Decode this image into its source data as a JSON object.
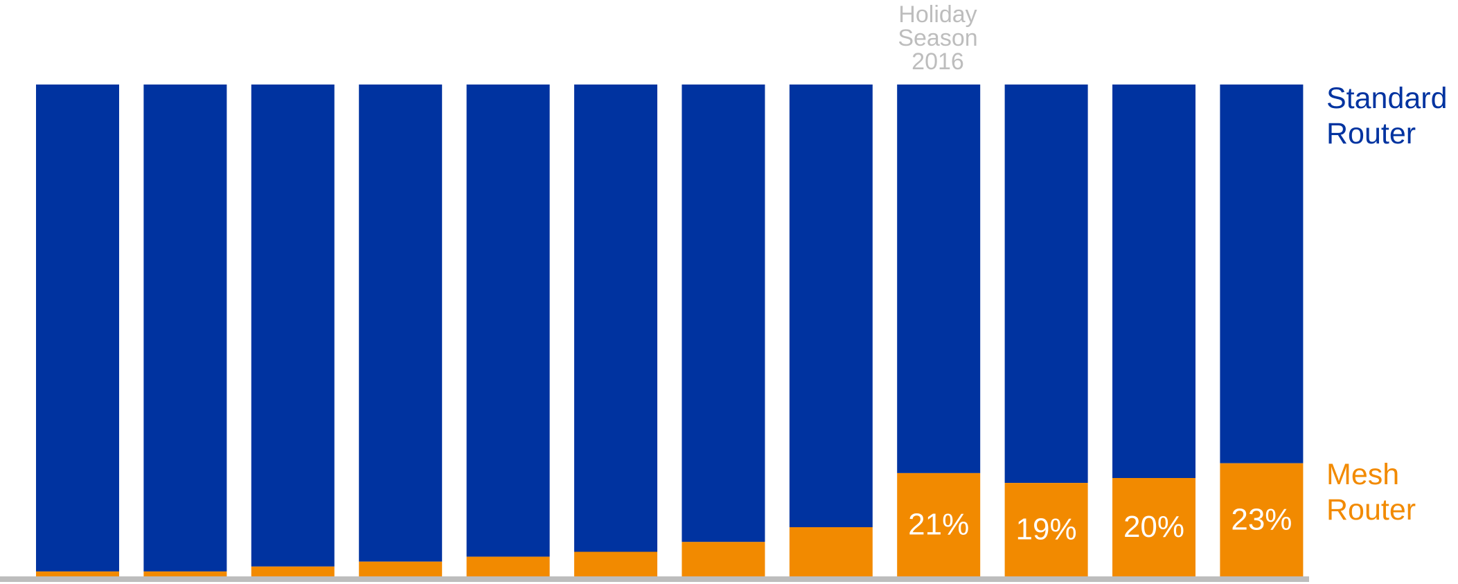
{
  "chart_data": {
    "type": "bar",
    "stacked": true,
    "categories": [
      "",
      "",
      "",
      "",
      "",
      "",
      "",
      "",
      "",
      "",
      "",
      ""
    ],
    "series": [
      {
        "name": "Mesh Router",
        "color": "#f28a00",
        "values": [
          1,
          1,
          2,
          3,
          4,
          5,
          7,
          10,
          21,
          19,
          20,
          23
        ],
        "data_labels": [
          "",
          "",
          "",
          "",
          "",
          "",
          "",
          "",
          "21%",
          "19%",
          "20%",
          "23%"
        ]
      },
      {
        "name": "Standard Router",
        "color": "#0033a0",
        "values": [
          99,
          99,
          98,
          97,
          96,
          95,
          93,
          90,
          79,
          81,
          80,
          77
        ]
      }
    ],
    "ylim": [
      0,
      100
    ],
    "annotation": {
      "text": [
        "Holiday",
        "Season",
        "2016"
      ],
      "category_index": 8
    },
    "legend": "right",
    "grid": false,
    "baseline_color": "#bdbdbd"
  },
  "labels": {
    "standard": [
      "Standard",
      "Router"
    ],
    "mesh": [
      "Mesh",
      "Router"
    ]
  }
}
